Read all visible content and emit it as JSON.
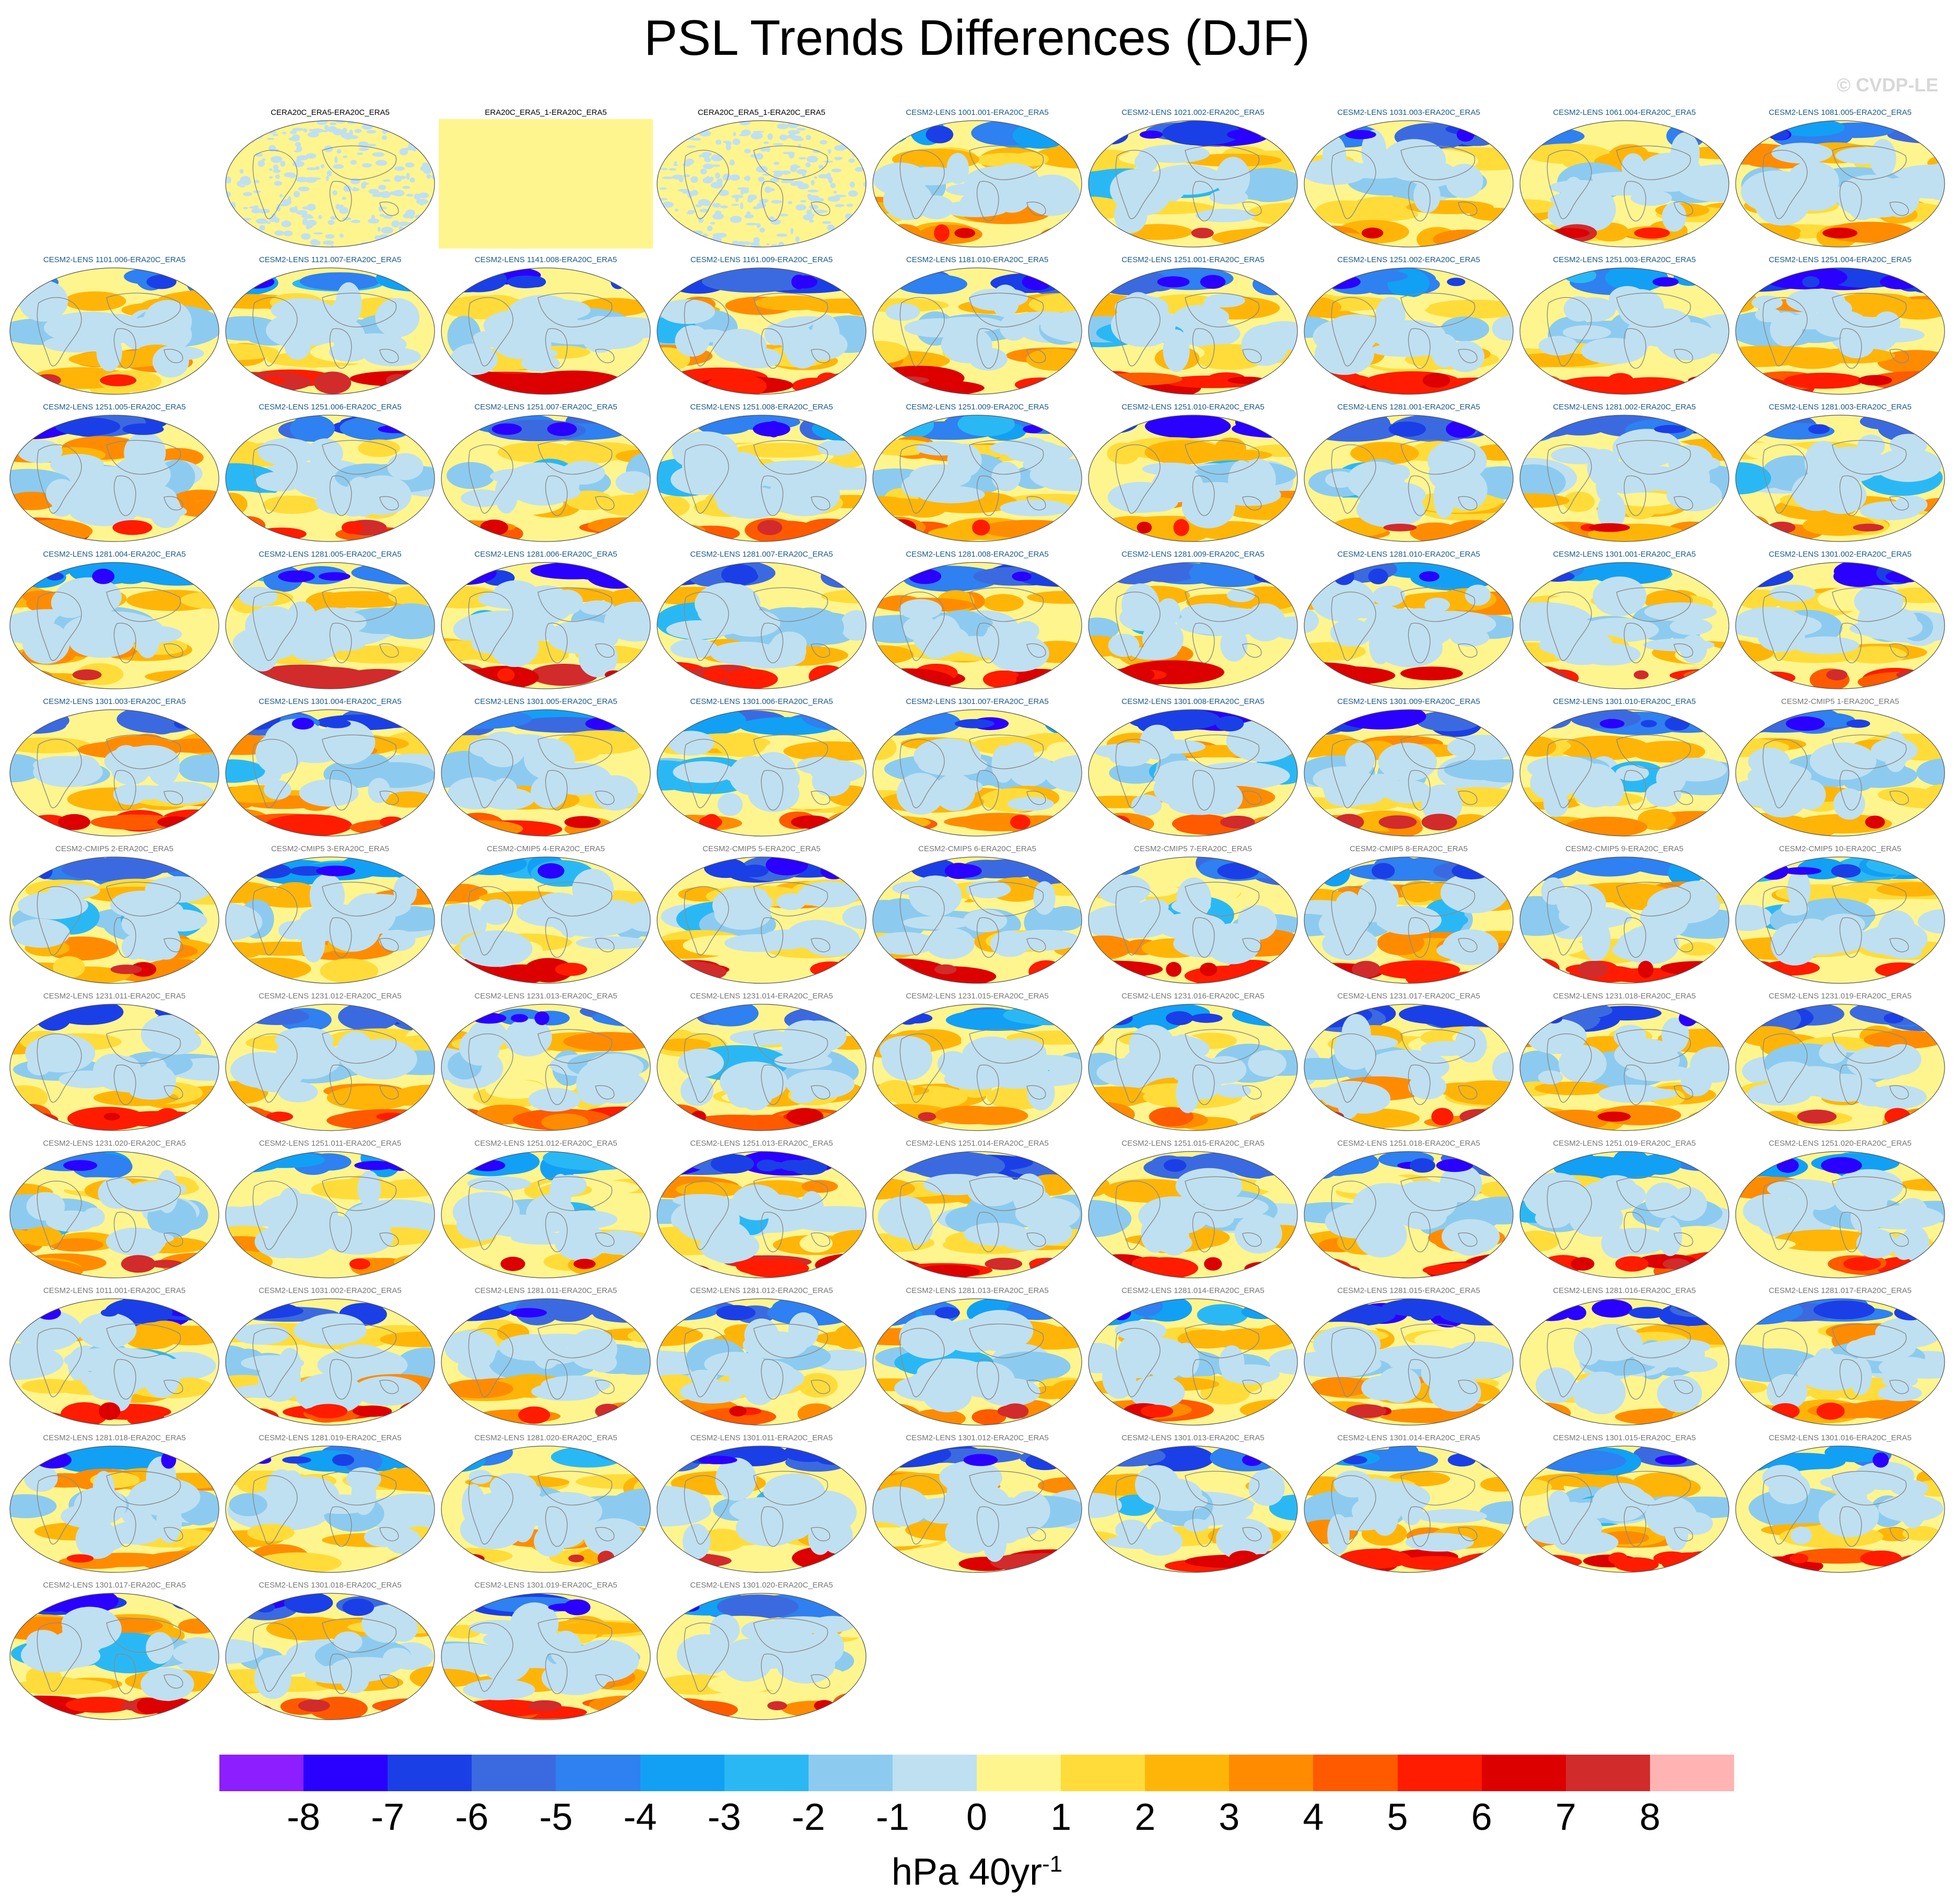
{
  "chart_data": {
    "type": "heatmap",
    "title": "PSL Trends Differences (DJF)",
    "watermark": "© CVDP-LE",
    "units": {
      "base": "hPa 40yr",
      "exponent": "-1"
    },
    "colorbar": {
      "levels": [
        "-8",
        "-7",
        "-6",
        "-5",
        "-4",
        "-3",
        "-2",
        "-1",
        "0",
        "1",
        "2",
        "3",
        "4",
        "5",
        "6",
        "7",
        "8"
      ],
      "colors": [
        "#8c1eff",
        "#2a00ff",
        "#1b3fe6",
        "#3b6ae0",
        "#2f80f0",
        "#12a0f5",
        "#2ab8f5",
        "#8ccbef",
        "#bfe0f1",
        "#fff58e",
        "#ffdc3a",
        "#ffb508",
        "#ff8c00",
        "#ff5a00",
        "#ff1c00",
        "#dc0000",
        "#d22b2b",
        "#ffb3b3"
      ]
    },
    "panels": [
      {
        "label": "CERA20C_ERA5-ERA20C_ERA5",
        "group": "obs",
        "pattern": "obs"
      },
      {
        "label": "ERA20C_ERA5_1-ERA20C_ERA5",
        "group": "obs",
        "pattern": "flat"
      },
      {
        "label": "CERA20C_ERA5_1-ERA20C_ERA5",
        "group": "obs",
        "pattern": "obs"
      },
      {
        "label": "CESM2-LENS 1001.001-ERA20C_ERA5",
        "group": "lens"
      },
      {
        "label": "CESM2-LENS 1021.002-ERA20C_ERA5",
        "group": "lens"
      },
      {
        "label": "CESM2-LENS 1031.003-ERA20C_ERA5",
        "group": "lens"
      },
      {
        "label": "CESM2-LENS 1061.004-ERA20C_ERA5",
        "group": "lens"
      },
      {
        "label": "CESM2-LENS 1081.005-ERA20C_ERA5",
        "group": "lens"
      },
      {
        "label": "CESM2-LENS 1101.006-ERA20C_ERA5",
        "group": "lens"
      },
      {
        "label": "CESM2-LENS 1121.007-ERA20C_ERA5",
        "group": "lens"
      },
      {
        "label": "CESM2-LENS 1141.008-ERA20C_ERA5",
        "group": "lens"
      },
      {
        "label": "CESM2-LENS 1161.009-ERA20C_ERA5",
        "group": "lens"
      },
      {
        "label": "CESM2-LENS 1181.010-ERA20C_ERA5",
        "group": "lens"
      },
      {
        "label": "CESM2-LENS 1251.001-ERA20C_ERA5",
        "group": "lens"
      },
      {
        "label": "CESM2-LENS 1251.002-ERA20C_ERA5",
        "group": "lens"
      },
      {
        "label": "CESM2-LENS 1251.003-ERA20C_ERA5",
        "group": "lens"
      },
      {
        "label": "CESM2-LENS 1251.004-ERA20C_ERA5",
        "group": "lens"
      },
      {
        "label": "CESM2-LENS 1251.005-ERA20C_ERA5",
        "group": "lens"
      },
      {
        "label": "CESM2-LENS 1251.006-ERA20C_ERA5",
        "group": "lens"
      },
      {
        "label": "CESM2-LENS 1251.007-ERA20C_ERA5",
        "group": "lens"
      },
      {
        "label": "CESM2-LENS 1251.008-ERA20C_ERA5",
        "group": "lens"
      },
      {
        "label": "CESM2-LENS 1251.009-ERA20C_ERA5",
        "group": "lens"
      },
      {
        "label": "CESM2-LENS 1251.010-ERA20C_ERA5",
        "group": "lens"
      },
      {
        "label": "CESM2-LENS 1281.001-ERA20C_ERA5",
        "group": "lens"
      },
      {
        "label": "CESM2-LENS 1281.002-ERA20C_ERA5",
        "group": "lens"
      },
      {
        "label": "CESM2-LENS 1281.003-ERA20C_ERA5",
        "group": "lens"
      },
      {
        "label": "CESM2-LENS 1281.004-ERA20C_ERA5",
        "group": "lens"
      },
      {
        "label": "CESM2-LENS 1281.005-ERA20C_ERA5",
        "group": "lens"
      },
      {
        "label": "CESM2-LENS 1281.006-ERA20C_ERA5",
        "group": "lens"
      },
      {
        "label": "CESM2-LENS 1281.007-ERA20C_ERA5",
        "group": "lens"
      },
      {
        "label": "CESM2-LENS 1281.008-ERA20C_ERA5",
        "group": "lens"
      },
      {
        "label": "CESM2-LENS 1281.009-ERA20C_ERA5",
        "group": "lens"
      },
      {
        "label": "CESM2-LENS 1281.010-ERA20C_ERA5",
        "group": "lens"
      },
      {
        "label": "CESM2-LENS 1301.001-ERA20C_ERA5",
        "group": "lens"
      },
      {
        "label": "CESM2-LENS 1301.002-ERA20C_ERA5",
        "group": "lens"
      },
      {
        "label": "CESM2-LENS 1301.003-ERA20C_ERA5",
        "group": "lens"
      },
      {
        "label": "CESM2-LENS 1301.004-ERA20C_ERA5",
        "group": "lens"
      },
      {
        "label": "CESM2-LENS 1301.005-ERA20C_ERA5",
        "group": "lens"
      },
      {
        "label": "CESM2-LENS 1301.006-ERA20C_ERA5",
        "group": "lens"
      },
      {
        "label": "CESM2-LENS 1301.007-ERA20C_ERA5",
        "group": "lens"
      },
      {
        "label": "CESM2-LENS 1301.008-ERA20C_ERA5",
        "group": "lens"
      },
      {
        "label": "CESM2-LENS 1301.009-ERA20C_ERA5",
        "group": "lens"
      },
      {
        "label": "CESM2-LENS 1301.010-ERA20C_ERA5",
        "group": "lens"
      },
      {
        "label": "CESM2-CMIP5 1-ERA20C_ERA5",
        "group": "cmip"
      },
      {
        "label": "CESM2-CMIP5 2-ERA20C_ERA5",
        "group": "cmip"
      },
      {
        "label": "CESM2-CMIP5 3-ERA20C_ERA5",
        "group": "cmip"
      },
      {
        "label": "CESM2-CMIP5 4-ERA20C_ERA5",
        "group": "cmip"
      },
      {
        "label": "CESM2-CMIP5 5-ERA20C_ERA5",
        "group": "cmip"
      },
      {
        "label": "CESM2-CMIP5 6-ERA20C_ERA5",
        "group": "cmip"
      },
      {
        "label": "CESM2-CMIP5 7-ERA20C_ERA5",
        "group": "cmip"
      },
      {
        "label": "CESM2-CMIP5 8-ERA20C_ERA5",
        "group": "cmip"
      },
      {
        "label": "CESM2-CMIP5 9-ERA20C_ERA5",
        "group": "cmip"
      },
      {
        "label": "CESM2-CMIP5 10-ERA20C_ERA5",
        "group": "cmip"
      },
      {
        "label": "CESM2-LENS 1231.011-ERA20C_ERA5",
        "group": "smbb"
      },
      {
        "label": "CESM2-LENS 1231.012-ERA20C_ERA5",
        "group": "smbb"
      },
      {
        "label": "CESM2-LENS 1231.013-ERA20C_ERA5",
        "group": "smbb"
      },
      {
        "label": "CESM2-LENS 1231.014-ERA20C_ERA5",
        "group": "smbb"
      },
      {
        "label": "CESM2-LENS 1231.015-ERA20C_ERA5",
        "group": "smbb"
      },
      {
        "label": "CESM2-LENS 1231.016-ERA20C_ERA5",
        "group": "smbb"
      },
      {
        "label": "CESM2-LENS 1231.017-ERA20C_ERA5",
        "group": "smbb"
      },
      {
        "label": "CESM2-LENS 1231.018-ERA20C_ERA5",
        "group": "smbb"
      },
      {
        "label": "CESM2-LENS 1231.019-ERA20C_ERA5",
        "group": "smbb"
      },
      {
        "label": "CESM2-LENS 1231.020-ERA20C_ERA5",
        "group": "smbb"
      },
      {
        "label": "CESM2-LENS 1251.011-ERA20C_ERA5",
        "group": "smbb"
      },
      {
        "label": "CESM2-LENS 1251.012-ERA20C_ERA5",
        "group": "smbb"
      },
      {
        "label": "CESM2-LENS 1251.013-ERA20C_ERA5",
        "group": "smbb"
      },
      {
        "label": "CESM2-LENS 1251.014-ERA20C_ERA5",
        "group": "smbb"
      },
      {
        "label": "CESM2-LENS 1251.015-ERA20C_ERA5",
        "group": "smbb"
      },
      {
        "label": "CESM2-LENS 1251.018-ERA20C_ERA5",
        "group": "smbb"
      },
      {
        "label": "CESM2-LENS 1251.019-ERA20C_ERA5",
        "group": "smbb"
      },
      {
        "label": "CESM2-LENS 1251.020-ERA20C_ERA5",
        "group": "smbb"
      },
      {
        "label": "CESM2-LENS 1011.001-ERA20C_ERA5",
        "group": "smbb"
      },
      {
        "label": "CESM2-LENS 1031.002-ERA20C_ERA5",
        "group": "smbb"
      },
      {
        "label": "CESM2-LENS 1281.011-ERA20C_ERA5",
        "group": "smbb"
      },
      {
        "label": "CESM2-LENS 1281.012-ERA20C_ERA5",
        "group": "smbb"
      },
      {
        "label": "CESM2-LENS 1281.013-ERA20C_ERA5",
        "group": "smbb"
      },
      {
        "label": "CESM2-LENS 1281.014-ERA20C_ERA5",
        "group": "smbb"
      },
      {
        "label": "CESM2-LENS 1281.015-ERA20C_ERA5",
        "group": "smbb"
      },
      {
        "label": "CESM2-LENS 1281.016-ERA20C_ERA5",
        "group": "smbb"
      },
      {
        "label": "CESM2-LENS 1281.017-ERA20C_ERA5",
        "group": "smbb"
      },
      {
        "label": "CESM2-LENS 1281.018-ERA20C_ERA5",
        "group": "smbb"
      },
      {
        "label": "CESM2-LENS 1281.019-ERA20C_ERA5",
        "group": "smbb"
      },
      {
        "label": "CESM2-LENS 1281.020-ERA20C_ERA5",
        "group": "smbb"
      },
      {
        "label": "CESM2-LENS 1301.011-ERA20C_ERA5",
        "group": "smbb"
      },
      {
        "label": "CESM2-LENS 1301.012-ERA20C_ERA5",
        "group": "smbb"
      },
      {
        "label": "CESM2-LENS 1301.013-ERA20C_ERA5",
        "group": "smbb"
      },
      {
        "label": "CESM2-LENS 1301.014-ERA20C_ERA5",
        "group": "smbb"
      },
      {
        "label": "CESM2-LENS 1301.015-ERA20C_ERA5",
        "group": "smbb"
      },
      {
        "label": "CESM2-LENS 1301.016-ERA20C_ERA5",
        "group": "smbb"
      },
      {
        "label": "CESM2-LENS 1301.017-ERA20C_ERA5",
        "group": "smbb"
      },
      {
        "label": "CESM2-LENS 1301.018-ERA20C_ERA5",
        "group": "smbb"
      },
      {
        "label": "CESM2-LENS 1301.019-ERA20C_ERA5",
        "group": "smbb"
      },
      {
        "label": "CESM2-LENS 1301.020-ERA20C_ERA5",
        "group": "smbb"
      }
    ],
    "label_colors": {
      "obs": "#000000",
      "lens": "#1a5a8c",
      "cmip": "#777777",
      "smbb": "#777777"
    }
  }
}
